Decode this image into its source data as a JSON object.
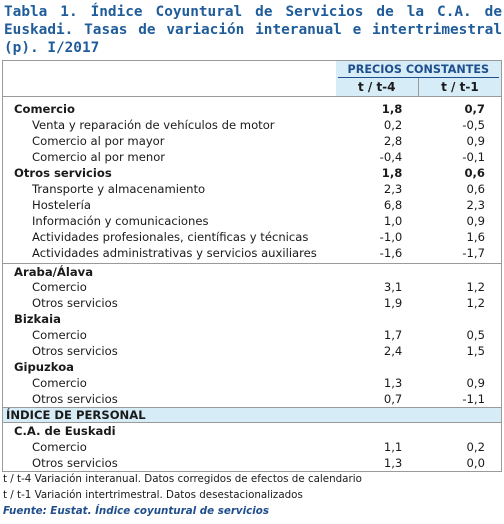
{
  "title": "Tabla 1. Índice Coyuntural de Servicios de la C.A. de Euskadi. Tasas de variación interanual e intertrimestral (p). I/2017",
  "header": {
    "group": "PRECIOS CONSTANTES",
    "col1": "t / t-4",
    "col2": "t / t-1"
  },
  "rows": [
    {
      "label": "Comercio",
      "v1": "1,8",
      "v2": "0,7"
    },
    {
      "label": "Venta y reparación de vehículos de motor",
      "v1": "0,2",
      "v2": "-0,5"
    },
    {
      "label": "Comercio al por mayor",
      "v1": "2,8",
      "v2": "0,9"
    },
    {
      "label": "Comercio al por menor",
      "v1": "-0,4",
      "v2": "-0,1"
    },
    {
      "label": "Otros servicios",
      "v1": "1,8",
      "v2": "0,6"
    },
    {
      "label": "Transporte y almacenamiento",
      "v1": "2,3",
      "v2": "0,6"
    },
    {
      "label": "Hostelería",
      "v1": "6,8",
      "v2": "2,3"
    },
    {
      "label": "Información y comunicaciones",
      "v1": "1,0",
      "v2": "0,9"
    },
    {
      "label": "Actividades profesionales, científicas y técnicas",
      "v1": "-1,0",
      "v2": "1,6"
    },
    {
      "label": "Actividades administrativas y servicios auxiliares",
      "v1": "-1,6",
      "v2": "-1,7"
    },
    {
      "label": "Araba/Álava"
    },
    {
      "label": "Comercio",
      "v1": "3,1",
      "v2": "1,2"
    },
    {
      "label": "Otros servicios",
      "v1": "1,9",
      "v2": "1,2"
    },
    {
      "label": "Bizkaia"
    },
    {
      "label": "Comercio",
      "v1": "1,7",
      "v2": "0,5"
    },
    {
      "label": "Otros servicios",
      "v1": "2,4",
      "v2": "1,5"
    },
    {
      "label": "Gipuzkoa"
    },
    {
      "label": "Comercio",
      "v1": "1,3",
      "v2": "0,9"
    },
    {
      "label": "Otros servicios",
      "v1": "0,7",
      "v2": "-1,1"
    },
    {
      "label": "ÍNDICE DE PERSONAL"
    },
    {
      "label": "C.A. de Euskadi"
    },
    {
      "label": "Comercio",
      "v1": "1,1",
      "v2": "0,2"
    },
    {
      "label": "Otros servicios",
      "v1": "1,3",
      "v2": "0,0"
    }
  ],
  "notes": {
    "n1": "t / t-4 Variación interanual. Datos corregidos de efectos de calendario",
    "n2": "t / t-1 Variación intertrimestral. Datos desestacionalizados",
    "source": "Fuente: Eustat. Índice coyuntural de servicios"
  }
}
